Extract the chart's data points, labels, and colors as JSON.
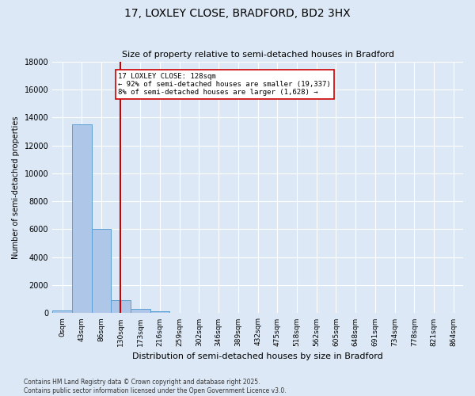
{
  "title": "17, LOXLEY CLOSE, BRADFORD, BD2 3HX",
  "subtitle": "Size of property relative to semi-detached houses in Bradford",
  "xlabel": "Distribution of semi-detached houses by size in Bradford",
  "ylabel": "Number of semi-detached properties",
  "bin_labels": [
    "0sqm",
    "43sqm",
    "86sqm",
    "130sqm",
    "173sqm",
    "216sqm",
    "259sqm",
    "302sqm",
    "346sqm",
    "389sqm",
    "432sqm",
    "475sqm",
    "518sqm",
    "562sqm",
    "605sqm",
    "648sqm",
    "691sqm",
    "734sqm",
    "778sqm",
    "821sqm",
    "864sqm"
  ],
  "bar_values": [
    200,
    13500,
    6000,
    950,
    300,
    120,
    50,
    0,
    0,
    0,
    0,
    0,
    0,
    0,
    0,
    0,
    0,
    0,
    0,
    0,
    0
  ],
  "bar_color": "#aec6e8",
  "bar_edgecolor": "#5a9fd4",
  "ylim": [
    0,
    18000
  ],
  "yticks": [
    0,
    2000,
    4000,
    6000,
    8000,
    10000,
    12000,
    14000,
    16000,
    18000
  ],
  "annotation_title": "17 LOXLEY CLOSE: 128sqm",
  "annotation_line1": "← 92% of semi-detached houses are smaller (19,337)",
  "annotation_line2": "8% of semi-detached houses are larger (1,628) →",
  "vline_x": 2.97,
  "annotation_box_color": "#ffffff",
  "annotation_box_edgecolor": "#cc0000",
  "footer1": "Contains HM Land Registry data © Crown copyright and database right 2025.",
  "footer2": "Contains public sector information licensed under the Open Government Licence v3.0.",
  "background_color": "#dce8f5",
  "plot_bg_color": "#dce8f5",
  "grid_color": "#ffffff"
}
